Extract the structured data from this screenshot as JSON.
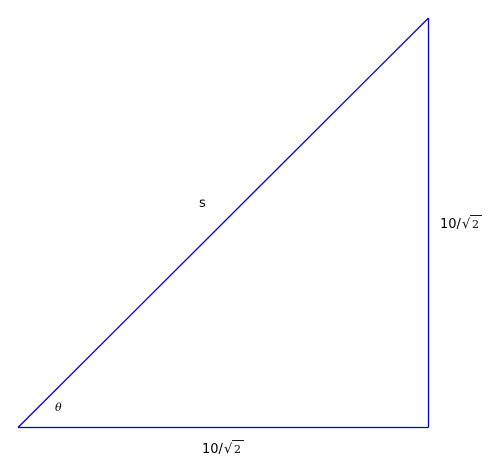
{
  "diagram": {
    "type": "right-triangle",
    "line_color": "#0000cc",
    "labels": {
      "hypotenuse": "s",
      "angle": "θ",
      "vertical_leg": {
        "numerator": "10/",
        "radical": "√",
        "radicand": "2"
      },
      "horizontal_leg": {
        "numerator": "10/",
        "radical": "√",
        "radicand": "2"
      }
    }
  }
}
